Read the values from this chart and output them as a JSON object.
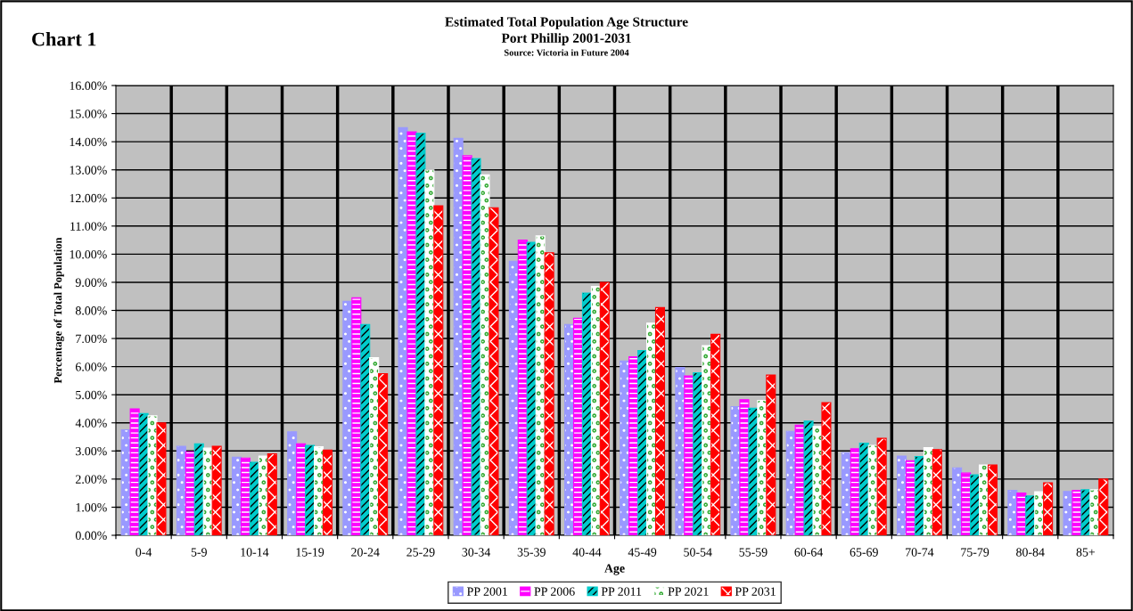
{
  "chart_data": {
    "type": "bar",
    "title": "Estimated Total Population Age Structure\nPort Phillip 2001-2031",
    "subtitle": "Source: Victoria in Future 2004",
    "annotations": [
      "Chart 1"
    ],
    "xlabel": "Age",
    "ylabel": "Percentage of Total Population",
    "categories": [
      "0-4",
      "5-9",
      "10-14",
      "15-19",
      "20-24",
      "25-29",
      "30-34",
      "35-39",
      "40-44",
      "45-49",
      "50-54",
      "55-59",
      "60-64",
      "65-69",
      "70-74",
      "75-79",
      "80-84",
      "85+"
    ],
    "series": [
      {
        "name": "PP 2001",
        "color": "#9999ff",
        "values": [
          3.75,
          3.17,
          2.78,
          3.68,
          8.32,
          14.5,
          14.12,
          9.75,
          7.5,
          6.2,
          5.97,
          4.58,
          3.7,
          2.94,
          2.82,
          2.4,
          1.6,
          1.56
        ]
      },
      {
        "name": "PP 2006",
        "color": "#ff00ff",
        "values": [
          4.5,
          2.97,
          2.75,
          3.25,
          8.45,
          14.35,
          13.5,
          10.5,
          7.72,
          6.35,
          5.67,
          4.82,
          3.92,
          3.08,
          2.65,
          2.22,
          1.5,
          1.6
        ]
      },
      {
        "name": "PP 2011",
        "color": "#00cccc",
        "values": [
          4.33,
          3.25,
          2.6,
          3.2,
          7.5,
          14.3,
          13.4,
          10.42,
          8.62,
          6.57,
          5.78,
          4.52,
          4.06,
          3.28,
          2.8,
          2.15,
          1.4,
          1.62
        ]
      },
      {
        "name": "PP 2021",
        "color": "#ffffff",
        "values": [
          4.25,
          3.1,
          2.82,
          3.15,
          6.32,
          13.0,
          12.82,
          10.65,
          8.85,
          7.55,
          6.75,
          4.8,
          3.87,
          3.2,
          3.12,
          2.5,
          1.55,
          1.62
        ]
      },
      {
        "name": "PP 2031",
        "color": "#ff0000",
        "values": [
          4.0,
          3.17,
          2.9,
          3.03,
          5.75,
          11.72,
          11.65,
          10.05,
          9.0,
          8.1,
          7.15,
          5.7,
          4.72,
          3.45,
          3.05,
          2.5,
          1.87,
          2.0
        ]
      }
    ],
    "ylim": [
      0,
      16
    ],
    "yticks": [
      {
        "value": 0,
        "label": "0.00%"
      },
      {
        "value": 1,
        "label": "1.00%"
      },
      {
        "value": 2,
        "label": "2.00%"
      },
      {
        "value": 3,
        "label": "3.00%"
      },
      {
        "value": 4,
        "label": "4.00%"
      },
      {
        "value": 5,
        "label": "5.00%"
      },
      {
        "value": 6,
        "label": "6.00%"
      },
      {
        "value": 7,
        "label": "7.00%"
      },
      {
        "value": 8,
        "label": "8.00%"
      },
      {
        "value": 9,
        "label": "9.00%"
      },
      {
        "value": 10,
        "label": "10.00%"
      },
      {
        "value": 11,
        "label": "11.00%"
      },
      {
        "value": 12,
        "label": "12.00%"
      },
      {
        "value": 13,
        "label": "13.00%"
      },
      {
        "value": 14,
        "label": "14.00%"
      },
      {
        "value": 15,
        "label": "15.00%"
      },
      {
        "value": 16,
        "label": "16.00%"
      }
    ],
    "grid": true,
    "legend": "bottom"
  }
}
